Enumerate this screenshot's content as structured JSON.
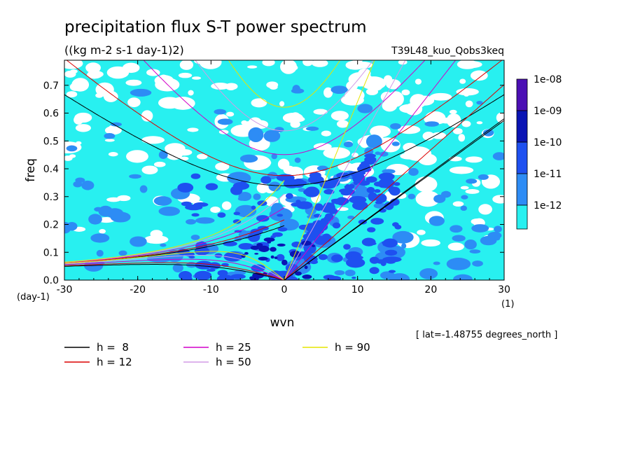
{
  "chart_data": {
    "type": "heatmap",
    "title": "precipitation flux S-T power spectrum",
    "subtitle": "((kg m-2 s-1 day-1)2)",
    "run_label": "T39L48_kuo_Qobs3keq",
    "xlabel": "wvn",
    "ylabel": "freq",
    "x_unit": "(1)",
    "y_unit": "(day-1)",
    "xlim": [
      -30,
      30
    ],
    "ylim": [
      0,
      0.79
    ],
    "xticks": [
      "-30",
      "-20",
      "-10",
      "0",
      "10",
      "20",
      "30"
    ],
    "yticks": [
      "0.0",
      "0.1",
      "0.2",
      "0.3",
      "0.4",
      "0.5",
      "0.6",
      "0.7"
    ],
    "latitude_note": "[ lat=-1.48755 degrees_north ]",
    "colorbar": {
      "labels": [
        "1e-08",
        "1e-09",
        "1e-10",
        "1e-11",
        "1e-12"
      ],
      "colors": [
        "#4b0fb4",
        "#0a14b4",
        "#1e50f0",
        "#2d8cf5",
        "#28f0f0"
      ],
      "levels": [
        1e-12,
        1e-11,
        1e-10,
        1e-09,
        1e-08
      ]
    },
    "series": [
      {
        "name": "h =  8",
        "color": "#000000",
        "h": 8
      },
      {
        "name": "h = 12",
        "color": "#dc0000",
        "h": 12
      },
      {
        "name": "h = 25",
        "color": "#d200c8",
        "h": 25
      },
      {
        "name": "h = 50",
        "color": "#d29be6",
        "h": 50
      },
      {
        "name": "h = 90",
        "color": "#e6e600",
        "h": 90
      }
    ]
  }
}
